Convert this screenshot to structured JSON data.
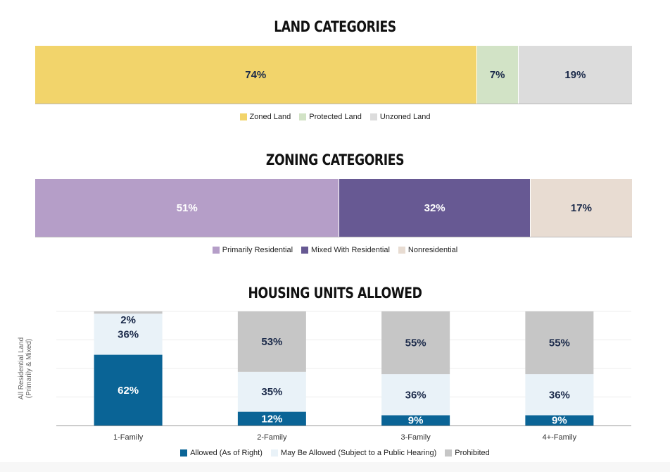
{
  "chart_data": [
    {
      "type": "bar",
      "orientation": "horizontal-stacked-100",
      "title": "LAND CATEGORIES",
      "series": [
        {
          "name": "Zoned Land",
          "value": 74,
          "label": "74%",
          "color": "#f2d46b",
          "text_color": "#1b2a4a"
        },
        {
          "name": "Protected Land",
          "value": 7,
          "label": "7%",
          "color": "#d2e3c6",
          "text_color": "#1b2a4a"
        },
        {
          "name": "Unzoned Land",
          "value": 19,
          "label": "19%",
          "color": "#dcdcdc",
          "text_color": "#1b2a4a"
        }
      ],
      "legend_position": "bottom-center"
    },
    {
      "type": "bar",
      "orientation": "horizontal-stacked-100",
      "title": "ZONING CATEGORIES",
      "series": [
        {
          "name": "Primarily Residential",
          "value": 51,
          "label": "51%",
          "color": "#b59ec8",
          "text_color": "#ffffff"
        },
        {
          "name": "Mixed With Residential",
          "value": 32,
          "label": "32%",
          "color": "#675993",
          "text_color": "#ffffff"
        },
        {
          "name": "Nonresidential",
          "value": 17,
          "label": "17%",
          "color": "#e8dcd2",
          "text_color": "#1b2a4a"
        }
      ],
      "legend_position": "bottom-center"
    },
    {
      "type": "bar",
      "orientation": "vertical-stacked-100",
      "title": "HOUSING UNITS ALLOWED",
      "ylabel": "All Residential Land (Primarily & Mixed)",
      "categories": [
        "1-Family",
        "2-Family",
        "3-Family",
        "4+-Family"
      ],
      "series": [
        {
          "name": "Allowed (As of Right)",
          "values": [
            62,
            12,
            9,
            9
          ],
          "labels": [
            "62%",
            "12%",
            "9%",
            "9%"
          ],
          "color": "#0a6496",
          "text_color": "#ffffff"
        },
        {
          "name": "May Be Allowed (Subject to a Public Hearing)",
          "values": [
            36,
            35,
            36,
            36
          ],
          "labels": [
            "36%",
            "35%",
            "36%",
            "36%"
          ],
          "color": "#e9f2f8",
          "text_color": "#1b2a4a"
        },
        {
          "name": "Prohibited",
          "values": [
            2,
            53,
            55,
            55
          ],
          "labels": [
            "2%",
            "53%",
            "55%",
            "55%"
          ],
          "color": "#c6c6c6",
          "text_color": "#1b2a4a"
        }
      ],
      "ylim": [
        0,
        100
      ],
      "grid": true,
      "legend_position": "bottom-center"
    }
  ]
}
